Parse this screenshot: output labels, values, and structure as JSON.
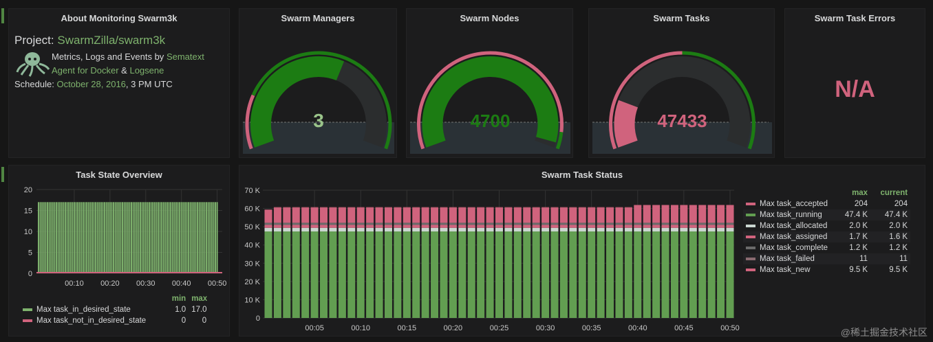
{
  "colors": {
    "green": "#629e51",
    "pink": "#d0637d",
    "gauge_green": "#1c7c13",
    "link": "#7eb26d"
  },
  "about": {
    "title": "About Monitoring Swarm3k",
    "project_label": "Project:",
    "project_link": "SwarmZilla/swarm3k",
    "logo_icon": "octopus-logo",
    "line1_text": "Metrics, Logs and Events by",
    "sematext_link": "Sematext",
    "agent_link": "Agent for Docker",
    "amp": "&",
    "logsene_link": "Logsene",
    "schedule_label": "Schedule:",
    "schedule_link": "October 28, 2016",
    "schedule_time": ", 3 PM UTC"
  },
  "gauges": [
    {
      "title": "Swarm Managers",
      "value": 3,
      "display": "3",
      "min": 0,
      "max": 5,
      "threshold": 1,
      "value_color": "#9ac48a"
    },
    {
      "title": "Swarm Nodes",
      "value": 4700,
      "display": "4700",
      "min": 0,
      "max": 4800,
      "threshold": 4500,
      "value_color": "#1c7c13"
    },
    {
      "title": "Swarm Tasks",
      "value": 47433,
      "display": "47433",
      "min": 40000,
      "max": 80000,
      "threshold": 60000,
      "value_color": "#d0637d"
    }
  ],
  "errors": {
    "title": "Swarm Task Errors",
    "value": "N/A"
  },
  "chart_data": [
    {
      "type": "bar",
      "title": "Task State Overview",
      "ylim": [
        0,
        20
      ],
      "yticks": [
        "0",
        "5",
        "10",
        "15",
        "20"
      ],
      "xticks": [
        "00:10",
        "00:20",
        "00:30",
        "00:40",
        "00:50"
      ],
      "x_minutes": [
        0,
        50
      ],
      "series": [
        {
          "name": "Max task_in_desired_state",
          "color": "#7eb26d",
          "value": 17,
          "min": "1.0",
          "max": "17.0"
        },
        {
          "name": "Max task_not_in_desired_state",
          "color": "#d0637d",
          "value": 0,
          "min": "0",
          "max": "0"
        }
      ],
      "legend_headers": [
        "min",
        "max"
      ],
      "grid": true,
      "legend": "bottom"
    },
    {
      "type": "bar",
      "stacked": true,
      "title": "Swarm Task Status",
      "ylim": [
        0,
        70000
      ],
      "yticks": [
        "0",
        "10 K",
        "20 K",
        "30 K",
        "40 K",
        "50 K",
        "60 K",
        "70 K"
      ],
      "xticks": [
        "00:05",
        "00:10",
        "00:15",
        "00:20",
        "00:25",
        "00:30",
        "00:35",
        "00:40",
        "00:45",
        "00:50"
      ],
      "x_minutes": [
        0,
        50
      ],
      "stack_order": [
        "Max task_running",
        "Max task_allocated",
        "Max task_assigned",
        "Max task_complete",
        "Max task_failed",
        "Max task_new",
        "Max task_accepted"
      ],
      "series": [
        {
          "name": "Max task_accepted",
          "color": "#d0637d",
          "max": "204",
          "current": "204",
          "value": 204
        },
        {
          "name": "Max task_running",
          "color": "#629e51",
          "max": "47.4 K",
          "current": "47.4 K",
          "value": 47400
        },
        {
          "name": "Max task_allocated",
          "color": "#c9d6cf",
          "max": "2.0 K",
          "current": "2.0 K",
          "value": 2000
        },
        {
          "name": "Max task_assigned",
          "color": "#d0637d",
          "max": "1.7 K",
          "current": "1.6 K",
          "value": 1600
        },
        {
          "name": "Max task_complete",
          "color": "#6a6a6a",
          "max": "1.2 K",
          "current": "1.2 K",
          "value": 1200
        },
        {
          "name": "Max task_failed",
          "color": "#8a6a70",
          "max": "11",
          "current": "11",
          "value": 11
        },
        {
          "name": "Max task_new",
          "color": "#d0637d",
          "max": "9.5 K",
          "current": "9.5 K",
          "values_by_minute": [
            7000,
            8300,
            8300,
            8300,
            8300,
            8300,
            8300,
            8300,
            8300,
            8300,
            8300,
            8300,
            8300,
            8300,
            8300,
            8300,
            8300,
            8300,
            8300,
            8300,
            8300,
            8300,
            8300,
            8300,
            8300,
            8300,
            8300,
            8300,
            8300,
            8300,
            8300,
            8300,
            8300,
            8300,
            8300,
            8300,
            8300,
            8300,
            8300,
            8300,
            9500,
            9500,
            9500,
            9500,
            9500,
            9500,
            9500,
            9500,
            9500,
            9500,
            9500
          ]
        }
      ],
      "legend_headers": [
        "max",
        "current"
      ],
      "grid": true,
      "legend": "right"
    }
  ],
  "watermark": "@稀土掘金技术社区"
}
